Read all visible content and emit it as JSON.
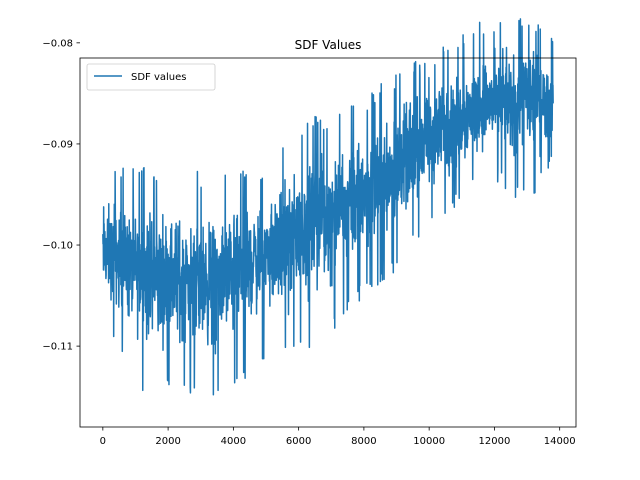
{
  "chart_data": {
    "type": "line",
    "title": "SDF Values",
    "xlabel": "",
    "ylabel": "",
    "xlim": [
      -700,
      14500
    ],
    "ylim": [
      -0.118,
      -0.0815
    ],
    "grid": false,
    "legend": {
      "position": "upper-left"
    },
    "x_ticks": [
      {
        "value": 0,
        "label": "0"
      },
      {
        "value": 2000,
        "label": "2000"
      },
      {
        "value": 4000,
        "label": "4000"
      },
      {
        "value": 6000,
        "label": "6000"
      },
      {
        "value": 8000,
        "label": "8000"
      },
      {
        "value": 10000,
        "label": "10000"
      },
      {
        "value": 12000,
        "label": "12000"
      },
      {
        "value": 14000,
        "label": "14000"
      }
    ],
    "y_ticks": [
      {
        "value": -0.11,
        "label": "−0.11"
      },
      {
        "value": -0.1,
        "label": "−0.10"
      },
      {
        "value": -0.09,
        "label": "−0.09"
      },
      {
        "value": -0.08,
        "label": "−0.08"
      }
    ],
    "series": [
      {
        "name": "SDF values",
        "color": "#1f77b4",
        "x": [
          0,
          500,
          1000,
          1500,
          2000,
          2500,
          3000,
          3500,
          4000,
          4500,
          5000,
          5500,
          6000,
          6500,
          7000,
          7500,
          8000,
          8500,
          9000,
          9500,
          10000,
          10500,
          11000,
          11500,
          12000,
          12500,
          13000,
          13500,
          13800
        ],
        "mean": [
          -0.101,
          -0.1015,
          -0.1025,
          -0.103,
          -0.103,
          -0.1035,
          -0.1035,
          -0.1035,
          -0.1025,
          -0.1015,
          -0.1005,
          -0.1,
          -0.0985,
          -0.0975,
          -0.0965,
          -0.0955,
          -0.0945,
          -0.0935,
          -0.092,
          -0.0905,
          -0.0895,
          -0.0885,
          -0.0875,
          -0.0865,
          -0.086,
          -0.086,
          -0.0855,
          -0.0855,
          -0.086
        ],
        "upper": [
          -0.091,
          -0.092,
          -0.092,
          -0.0925,
          -0.092,
          -0.091,
          -0.093,
          -0.092,
          -0.092,
          -0.0925,
          -0.092,
          -0.09,
          -0.089,
          -0.087,
          -0.088,
          -0.086,
          -0.0855,
          -0.084,
          -0.083,
          -0.0815,
          -0.082,
          -0.08,
          -0.079,
          -0.078,
          -0.0775,
          -0.077,
          -0.077,
          -0.0785,
          -0.079
        ],
        "lower": [
          -0.107,
          -0.111,
          -0.114,
          -0.116,
          -0.1145,
          -0.115,
          -0.116,
          -0.1155,
          -0.115,
          -0.113,
          -0.111,
          -0.111,
          -0.111,
          -0.11,
          -0.109,
          -0.107,
          -0.105,
          -0.104,
          -0.103,
          -0.1,
          -0.099,
          -0.097,
          -0.096,
          -0.094,
          -0.0935,
          -0.095,
          -0.096,
          -0.094,
          -0.092
        ]
      }
    ]
  }
}
